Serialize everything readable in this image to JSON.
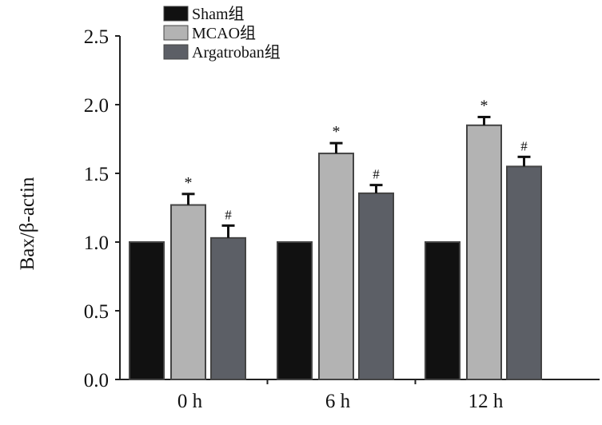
{
  "chart_data": {
    "type": "bar",
    "title": "",
    "xlabel": "",
    "ylabel": "Bax/β-actin",
    "ylim": [
      0,
      2.5
    ],
    "yticks": [
      "0.0",
      "0.5",
      "1.0",
      "1.5",
      "2.0",
      "2.5"
    ],
    "categories": [
      "0 h",
      "6 h",
      "12 h"
    ],
    "legend_position": "top-left",
    "series": [
      {
        "name": "Sham组",
        "color": "#111111",
        "values": [
          1.0,
          1.0,
          1.0
        ],
        "errors": [
          0,
          0,
          0
        ],
        "marks": [
          "",
          "",
          ""
        ]
      },
      {
        "name": "MCAO组",
        "color": "#b3b3b3",
        "values": [
          1.27,
          1.645,
          1.85
        ],
        "errors": [
          0.08,
          0.075,
          0.06
        ],
        "marks": [
          "*",
          "*",
          "*"
        ]
      },
      {
        "name": "Argatroban组",
        "color": "#5c5f66",
        "values": [
          1.03,
          1.355,
          1.55
        ],
        "errors": [
          0.09,
          0.06,
          0.07
        ],
        "marks": [
          "#",
          "#",
          "#"
        ]
      }
    ]
  }
}
